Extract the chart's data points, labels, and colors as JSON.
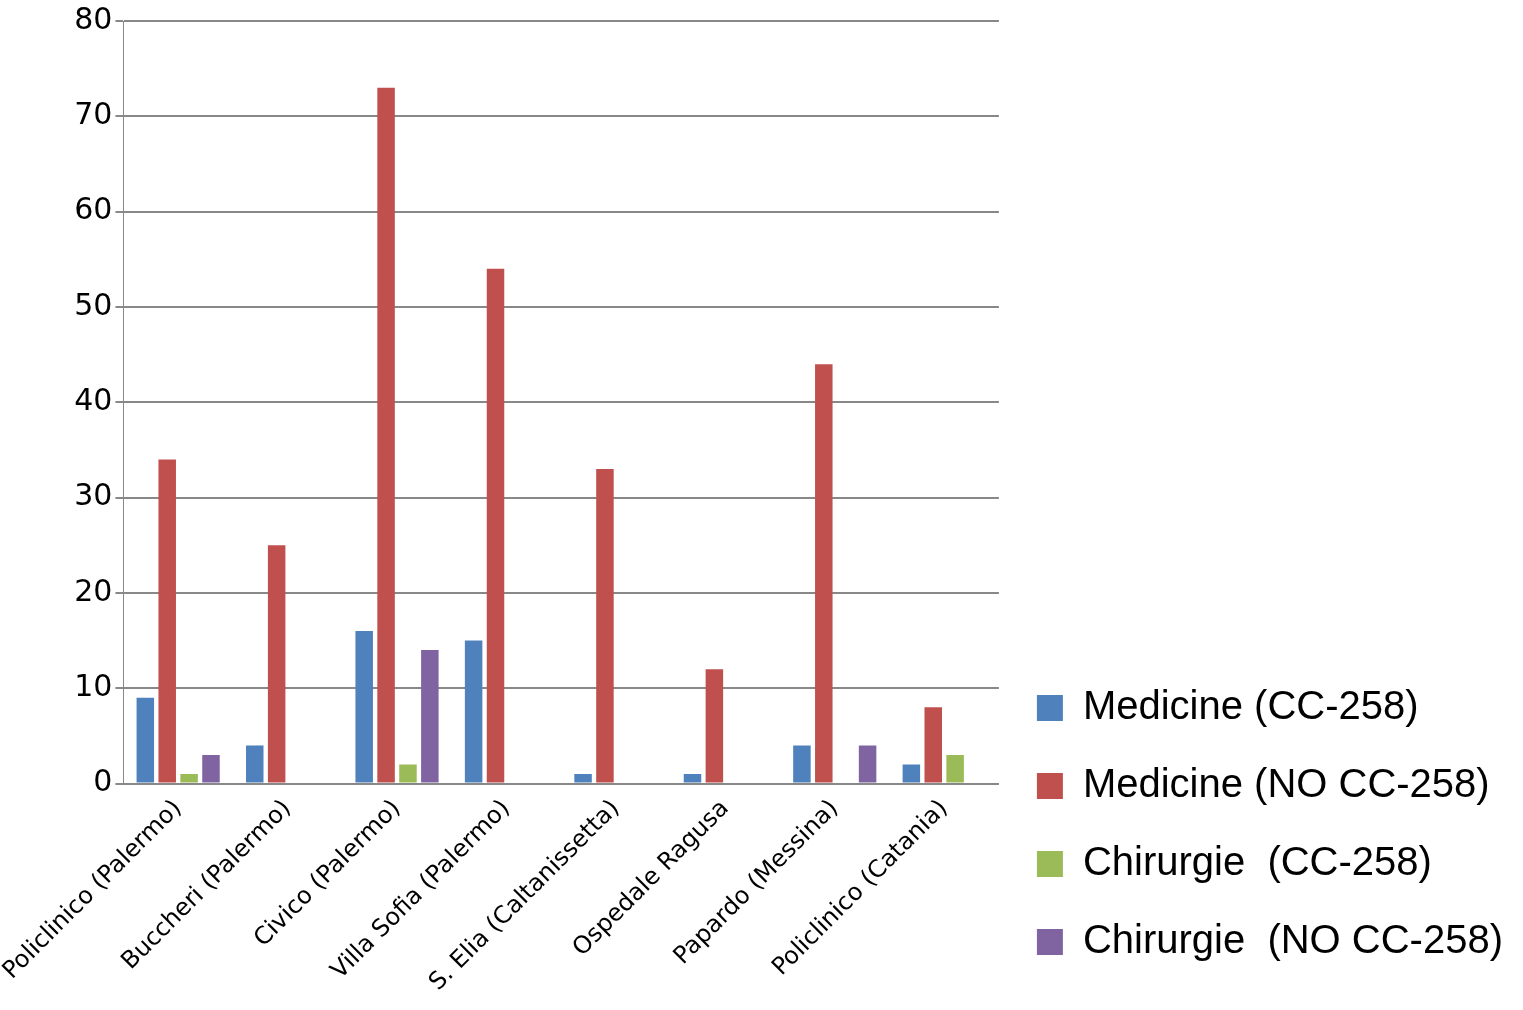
{
  "chart_data": {
    "type": "bar",
    "categories": [
      "Policlinico (Palermo)",
      "Buccheri (Palermo)",
      "Civico (Palermo)",
      "Villa Sofia (Palermo)",
      "S. Elia (Caltanissetta)",
      "Ospedale Ragusa",
      "Papardo (Messina)",
      "Policlinico (Catania)"
    ],
    "series": [
      {
        "name": "Medicine (CC-258)",
        "color": "#4f81bd",
        "values": [
          9,
          4,
          16,
          15,
          1,
          1,
          4,
          2
        ]
      },
      {
        "name": "Medicine (NO CC-258)",
        "color": "#c0504d",
        "values": [
          34,
          25,
          73,
          54,
          33,
          12,
          44,
          8
        ]
      },
      {
        "name": "Chirurgie  (CC-258)",
        "color": "#9bbb59",
        "values": [
          1,
          0,
          2,
          0,
          0,
          0,
          0,
          3
        ]
      },
      {
        "name": "Chirurgie  (NO CC-258)",
        "color": "#8064a2",
        "values": [
          3,
          0,
          14,
          0,
          0,
          0,
          4,
          0
        ]
      }
    ],
    "ylim": [
      0,
      80
    ],
    "yticks": [
      0,
      10,
      20,
      30,
      40,
      50,
      60,
      70,
      80
    ],
    "grid": "y",
    "legend": "right"
  }
}
